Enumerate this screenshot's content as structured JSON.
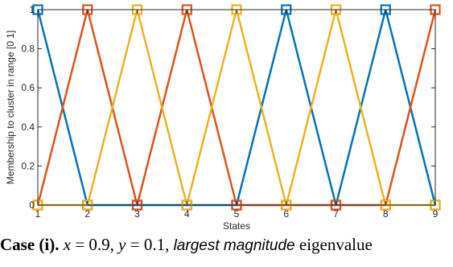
{
  "chart_data": {
    "type": "line",
    "xlabel": "States",
    "ylabel": "Membership to cluster in range [0  1]",
    "x": [
      1,
      2,
      3,
      4,
      5,
      6,
      7,
      8,
      9
    ],
    "xlim": [
      1,
      9
    ],
    "ylim": [
      0,
      1
    ],
    "xticks": [
      "1",
      "2",
      "3",
      "4",
      "5",
      "6",
      "7",
      "8",
      "9"
    ],
    "yticks": [
      "0",
      "0.2",
      "0.4",
      "0.6",
      "0.8",
      "1"
    ],
    "grid": false,
    "marker": "square",
    "series": [
      {
        "values": [
          1,
          0,
          0,
          0,
          0,
          1,
          0,
          1,
          0
        ],
        "color": "#0072BD"
      },
      {
        "values": [
          0,
          1,
          0,
          1,
          0,
          0,
          0,
          0,
          1
        ],
        "color": "#D95319"
      },
      {
        "values": [
          0,
          0,
          1,
          0,
          1,
          0,
          1,
          0,
          0
        ],
        "color": "#EDB120"
      }
    ]
  },
  "caption": {
    "lead": "Case (i).",
    "x_var": "x",
    "x_eq": " = 0.9,",
    "y_var": "y",
    "y_eq": " = 0.1,",
    "emph": "largest magnitude",
    "tail": " eigenvalue"
  }
}
